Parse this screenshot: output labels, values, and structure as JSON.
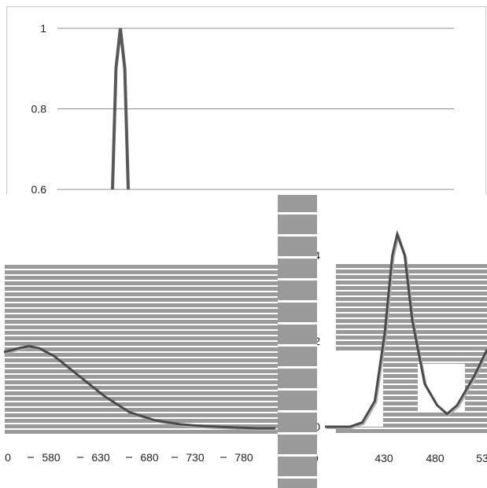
{
  "chart_data": [
    {
      "type": "line",
      "title": "",
      "xlabel": "",
      "ylabel": "",
      "ylim": [
        0.6,
        1.0
      ],
      "y_ticks": [
        "1",
        "0.8",
        "0.6"
      ],
      "grid": true,
      "series": [
        {
          "values": [
            [
              0.0,
              0.6
            ],
            [
              0.22,
              0.9
            ],
            [
              0.5,
              1.0
            ],
            [
              0.78,
              0.9
            ],
            [
              1.0,
              0.6
            ]
          ]
        }
      ]
    },
    {
      "type": "line",
      "title": "",
      "xlabel": "",
      "ylabel": "",
      "x_ticks": [
        "0",
        "580",
        "630",
        "680",
        "730",
        "780"
      ],
      "grid": true,
      "series": [
        {
          "values": [
            [
              530,
              0.19
            ],
            [
              545,
              0.2
            ],
            [
              555,
              0.205
            ],
            [
              565,
              0.2
            ],
            [
              580,
              0.18
            ],
            [
              600,
              0.14
            ],
            [
              630,
              0.08
            ],
            [
              655,
              0.04
            ],
            [
              680,
              0.02
            ],
            [
              705,
              0.01
            ],
            [
              730,
              0.005
            ],
            [
              780,
              0.0
            ],
            [
              800,
              0.0
            ]
          ]
        }
      ]
    },
    {
      "type": "line",
      "title": "",
      "xlabel": "",
      "ylabel": "",
      "ylim": [
        0,
        0.45
      ],
      "y_ticks": [
        "0.4",
        "0.2",
        "0"
      ],
      "x_ticks": [
        "380",
        "430",
        "480",
        "53"
      ],
      "grid": true,
      "series": [
        {
          "values": [
            [
              380,
              0.0
            ],
            [
              400,
              0.0
            ],
            [
              410,
              0.01
            ],
            [
              420,
              0.06
            ],
            [
              428,
              0.22
            ],
            [
              434,
              0.4
            ],
            [
              438,
              0.45
            ],
            [
              444,
              0.4
            ],
            [
              450,
              0.25
            ],
            [
              460,
              0.1
            ],
            [
              470,
              0.05
            ],
            [
              478,
              0.03
            ],
            [
              486,
              0.05
            ],
            [
              500,
              0.12
            ],
            [
              510,
              0.18
            ]
          ]
        }
      ]
    }
  ]
}
